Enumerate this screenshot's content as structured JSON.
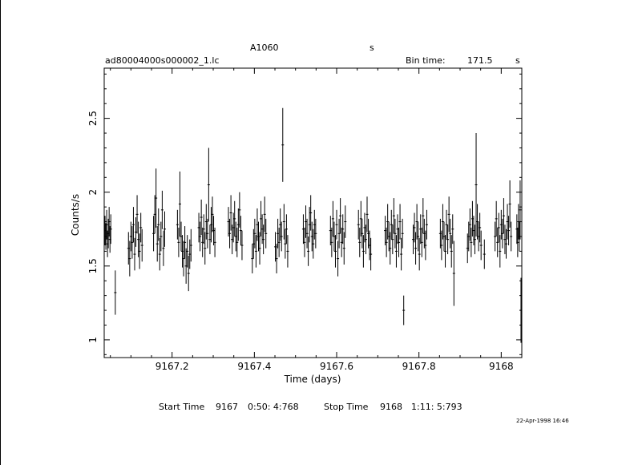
{
  "header": {
    "object": "A1060",
    "band": "s",
    "filename": "ad80004000s000002_1.lc",
    "bin_label": "Bin time:",
    "bin_value": "171.5",
    "bin_unit": "s"
  },
  "footer": {
    "start_label": "Start Time",
    "start_day": "9167",
    "start_time": "0:50: 4:768",
    "stop_label": "Stop Time",
    "stop_day": "9168",
    "stop_time": "1:11: 5:793",
    "date_stamp": "22-Apr-1998 16:46"
  },
  "chart_data": {
    "type": "scatter",
    "xlabel": "Time (days)",
    "ylabel": "Counts/s",
    "xlim": [
      9167.035,
      9168.05
    ],
    "ylim": [
      0.88,
      2.84
    ],
    "xticks": [
      9167.2,
      9167.4,
      9167.6,
      9167.8,
      9168
    ],
    "xtick_labels": [
      "9167.2",
      "9167.4",
      "9167.6",
      "9167.8",
      "9168"
    ],
    "yticks": [
      1,
      1.5,
      2,
      2.5
    ],
    "ytick_labels": [
      "1",
      "1.5",
      "2",
      "2.5"
    ],
    "grid": false,
    "series": [
      {
        "points": [
          [
            9167.037,
            1.74,
            0.1
          ],
          [
            9167.039,
            1.7,
            0.09
          ],
          [
            9167.041,
            1.78,
            0.1
          ],
          [
            9167.043,
            1.65,
            0.09
          ],
          [
            9167.045,
            1.72,
            0.1
          ],
          [
            9167.047,
            1.8,
            0.1
          ],
          [
            9167.049,
            1.68,
            0.09
          ],
          [
            9167.051,
            1.75,
            0.1
          ],
          [
            9167.062,
            1.32,
            0.15
          ],
          [
            9167.094,
            1.62,
            0.11
          ],
          [
            9167.097,
            1.55,
            0.12
          ],
          [
            9167.1,
            1.7,
            0.1
          ],
          [
            9167.103,
            1.66,
            0.11
          ],
          [
            9167.106,
            1.78,
            0.12
          ],
          [
            9167.109,
            1.58,
            0.11
          ],
          [
            9167.112,
            1.73,
            0.1
          ],
          [
            9167.115,
            1.85,
            0.13
          ],
          [
            9167.118,
            1.68,
            0.12
          ],
          [
            9167.121,
            1.6,
            0.12
          ],
          [
            9167.124,
            1.76,
            0.1
          ],
          [
            9167.127,
            1.64,
            0.11
          ],
          [
            9167.155,
            1.72,
            0.12
          ],
          [
            9167.158,
            1.85,
            0.13
          ],
          [
            9167.161,
            1.96,
            0.2
          ],
          [
            9167.164,
            1.65,
            0.12
          ],
          [
            9167.167,
            1.78,
            0.11
          ],
          [
            9167.17,
            1.58,
            0.11
          ],
          [
            9167.173,
            1.7,
            0.1
          ],
          [
            9167.176,
            1.88,
            0.13
          ],
          [
            9167.179,
            1.62,
            0.12
          ],
          [
            9167.182,
            1.75,
            0.12
          ],
          [
            9167.213,
            1.78,
            0.1
          ],
          [
            9167.216,
            1.66,
            0.1
          ],
          [
            9167.219,
            1.92,
            0.22
          ],
          [
            9167.222,
            1.7,
            0.1
          ],
          [
            9167.225,
            1.6,
            0.11
          ],
          [
            9167.228,
            1.55,
            0.12
          ],
          [
            9167.231,
            1.66,
            0.11
          ],
          [
            9167.234,
            1.5,
            0.12
          ],
          [
            9167.237,
            1.6,
            0.11
          ],
          [
            9167.24,
            1.45,
            0.12
          ],
          [
            9167.243,
            1.58,
            0.1
          ],
          [
            9167.246,
            1.64,
            0.11
          ],
          [
            9167.265,
            1.76,
            0.1
          ],
          [
            9167.268,
            1.7,
            0.1
          ],
          [
            9167.271,
            1.83,
            0.12
          ],
          [
            9167.274,
            1.66,
            0.1
          ],
          [
            9167.277,
            1.75,
            0.1
          ],
          [
            9167.28,
            1.62,
            0.11
          ],
          [
            9167.283,
            1.8,
            0.12
          ],
          [
            9167.286,
            1.72,
            0.1
          ],
          [
            9167.289,
            2.05,
            0.25
          ],
          [
            9167.292,
            1.68,
            0.1
          ],
          [
            9167.295,
            1.78,
            0.12
          ],
          [
            9167.298,
            1.85,
            0.12
          ],
          [
            9167.301,
            1.74,
            0.1
          ],
          [
            9167.304,
            1.66,
            0.1
          ],
          [
            9167.337,
            1.8,
            0.1
          ],
          [
            9167.34,
            1.72,
            0.1
          ],
          [
            9167.343,
            1.86,
            0.12
          ],
          [
            9167.346,
            1.68,
            0.1
          ],
          [
            9167.349,
            1.76,
            0.1
          ],
          [
            9167.352,
            1.82,
            0.12
          ],
          [
            9167.355,
            1.7,
            0.1
          ],
          [
            9167.358,
            1.66,
            0.1
          ],
          [
            9167.361,
            1.78,
            0.11
          ],
          [
            9167.364,
            1.88,
            0.12
          ],
          [
            9167.367,
            1.74,
            0.1
          ],
          [
            9167.37,
            1.64,
            0.1
          ],
          [
            9167.395,
            1.55,
            0.1
          ],
          [
            9167.398,
            1.65,
            0.1
          ],
          [
            9167.401,
            1.72,
            0.1
          ],
          [
            9167.404,
            1.6,
            0.11
          ],
          [
            9167.407,
            1.78,
            0.11
          ],
          [
            9167.41,
            1.7,
            0.1
          ],
          [
            9167.413,
            1.62,
            0.11
          ],
          [
            9167.416,
            1.82,
            0.12
          ],
          [
            9167.419,
            1.75,
            0.1
          ],
          [
            9167.422,
            1.68,
            0.1
          ],
          [
            9167.425,
            1.85,
            0.12
          ],
          [
            9167.428,
            1.72,
            0.1
          ],
          [
            9167.451,
            1.63,
            0.1
          ],
          [
            9167.454,
            1.55,
            0.1
          ],
          [
            9167.457,
            1.72,
            0.1
          ],
          [
            9167.46,
            1.66,
            0.1
          ],
          [
            9167.463,
            1.78,
            0.11
          ],
          [
            9167.466,
            1.7,
            0.1
          ],
          [
            9167.469,
            2.32,
            0.25
          ],
          [
            9167.472,
            1.8,
            0.12
          ],
          [
            9167.475,
            1.65,
            0.1
          ],
          [
            9167.478,
            1.75,
            0.1
          ],
          [
            9167.481,
            1.6,
            0.11
          ],
          [
            9167.519,
            1.75,
            0.1
          ],
          [
            9167.522,
            1.66,
            0.1
          ],
          [
            9167.525,
            1.8,
            0.11
          ],
          [
            9167.528,
            1.72,
            0.1
          ],
          [
            9167.531,
            1.6,
            0.1
          ],
          [
            9167.534,
            1.78,
            0.12
          ],
          [
            9167.537,
            1.86,
            0.12
          ],
          [
            9167.54,
            1.7,
            0.1
          ],
          [
            9167.543,
            1.65,
            0.1
          ],
          [
            9167.546,
            1.78,
            0.1
          ],
          [
            9167.549,
            1.72,
            0.1
          ],
          [
            9167.585,
            1.74,
            0.1
          ],
          [
            9167.588,
            1.66,
            0.1
          ],
          [
            9167.591,
            1.82,
            0.12
          ],
          [
            9167.594,
            1.7,
            0.1
          ],
          [
            9167.597,
            1.6,
            0.11
          ],
          [
            9167.6,
            1.78,
            0.1
          ],
          [
            9167.603,
            1.55,
            0.12
          ],
          [
            9167.606,
            1.72,
            0.1
          ],
          [
            9167.609,
            1.84,
            0.12
          ],
          [
            9167.612,
            1.66,
            0.1
          ],
          [
            9167.615,
            1.75,
            0.1
          ],
          [
            9167.618,
            1.62,
            0.11
          ],
          [
            9167.621,
            1.8,
            0.11
          ],
          [
            9167.653,
            1.78,
            0.1
          ],
          [
            9167.656,
            1.66,
            0.1
          ],
          [
            9167.659,
            1.82,
            0.12
          ],
          [
            9167.662,
            1.72,
            0.1
          ],
          [
            9167.665,
            1.6,
            0.11
          ],
          [
            9167.668,
            1.76,
            0.1
          ],
          [
            9167.671,
            1.68,
            0.1
          ],
          [
            9167.674,
            1.85,
            0.12
          ],
          [
            9167.677,
            1.72,
            0.1
          ],
          [
            9167.68,
            1.64,
            0.1
          ],
          [
            9167.683,
            1.58,
            0.11
          ],
          [
            9167.718,
            1.74,
            0.1
          ],
          [
            9167.721,
            1.66,
            0.1
          ],
          [
            9167.724,
            1.8,
            0.12
          ],
          [
            9167.727,
            1.7,
            0.1
          ],
          [
            9167.73,
            1.62,
            0.11
          ],
          [
            9167.733,
            1.78,
            0.1
          ],
          [
            9167.736,
            1.68,
            0.1
          ],
          [
            9167.739,
            1.84,
            0.12
          ],
          [
            9167.742,
            1.72,
            0.1
          ],
          [
            9167.745,
            1.6,
            0.11
          ],
          [
            9167.748,
            1.75,
            0.1
          ],
          [
            9167.751,
            1.66,
            0.1
          ],
          [
            9167.754,
            1.8,
            0.12
          ],
          [
            9167.757,
            1.58,
            0.11
          ],
          [
            9167.76,
            1.72,
            0.1
          ],
          [
            9167.763,
            1.2,
            0.1
          ],
          [
            9167.786,
            1.68,
            0.1
          ],
          [
            9167.789,
            1.76,
            0.1
          ],
          [
            9167.792,
            1.62,
            0.11
          ],
          [
            9167.795,
            1.8,
            0.12
          ],
          [
            9167.798,
            1.7,
            0.1
          ],
          [
            9167.801,
            1.58,
            0.11
          ],
          [
            9167.804,
            1.75,
            0.1
          ],
          [
            9167.807,
            1.66,
            0.1
          ],
          [
            9167.81,
            1.84,
            0.12
          ],
          [
            9167.813,
            1.72,
            0.1
          ],
          [
            9167.816,
            1.64,
            0.1
          ],
          [
            9167.819,
            1.78,
            0.1
          ],
          [
            9167.852,
            1.72,
            0.1
          ],
          [
            9167.855,
            1.64,
            0.1
          ],
          [
            9167.858,
            1.8,
            0.12
          ],
          [
            9167.861,
            1.7,
            0.1
          ],
          [
            9167.864,
            1.6,
            0.11
          ],
          [
            9167.867,
            1.78,
            0.1
          ],
          [
            9167.87,
            1.68,
            0.1
          ],
          [
            9167.873,
            1.85,
            0.12
          ],
          [
            9167.876,
            1.72,
            0.1
          ],
          [
            9167.879,
            1.6,
            0.11
          ],
          [
            9167.882,
            1.75,
            0.1
          ],
          [
            9167.885,
            1.45,
            0.22
          ],
          [
            9167.918,
            1.62,
            0.1
          ],
          [
            9167.921,
            1.7,
            0.1
          ],
          [
            9167.924,
            1.78,
            0.11
          ],
          [
            9167.927,
            1.66,
            0.1
          ],
          [
            9167.93,
            1.82,
            0.12
          ],
          [
            9167.933,
            1.74,
            0.1
          ],
          [
            9167.936,
            1.68,
            0.1
          ],
          [
            9167.939,
            2.05,
            0.35
          ],
          [
            9167.942,
            1.8,
            0.12
          ],
          [
            9167.945,
            1.7,
            0.1
          ],
          [
            9167.948,
            1.76,
            0.1
          ],
          [
            9167.951,
            1.64,
            0.1
          ],
          [
            9167.959,
            1.58,
            0.1
          ],
          [
            9167.985,
            1.7,
            0.1
          ],
          [
            9167.988,
            1.82,
            0.12
          ],
          [
            9167.991,
            1.66,
            0.1
          ],
          [
            9167.994,
            1.76,
            0.1
          ],
          [
            9167.997,
            1.6,
            0.11
          ],
          [
            9168.0,
            1.78,
            0.1
          ],
          [
            9168.003,
            1.72,
            0.1
          ],
          [
            9168.006,
            1.84,
            0.12
          ],
          [
            9168.009,
            1.68,
            0.1
          ],
          [
            9168.012,
            1.65,
            0.1
          ],
          [
            9168.015,
            1.8,
            0.12
          ],
          [
            9168.018,
            1.74,
            0.1
          ],
          [
            9168.021,
            1.92,
            0.16
          ],
          [
            9168.024,
            1.7,
            0.1
          ],
          [
            9168.038,
            1.75,
            0.1
          ],
          [
            9168.04,
            1.66,
            0.1
          ],
          [
            9168.042,
            1.8,
            0.12
          ],
          [
            9168.044,
            1.7,
            0.1
          ],
          [
            9168.046,
            1.88,
            0.2
          ],
          [
            9168.048,
            1.2,
            0.22
          ]
        ]
      }
    ]
  }
}
